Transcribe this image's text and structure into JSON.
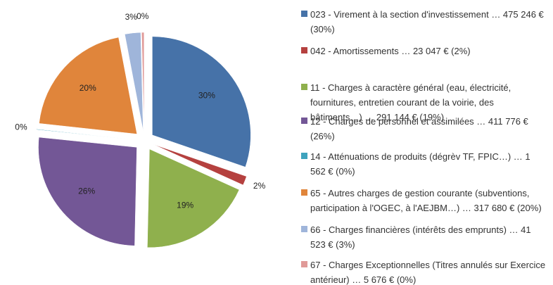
{
  "chart_data": {
    "type": "pie",
    "categories": [
      "023 - Virement à la section d'investissement … 475 246 € (30%)",
      "042 - Amortissements … 23 047 € (2%)",
      "11 - Charges à caractère général (eau, électricité, fournitures, entretien courant de la voirie, des bâtiments…) … 291 144 € (19%)",
      "12 - Charges de personnel et assimilées … 411 776 € (26%)",
      "14 - Atténuations de produits (dégrèv TF, FPIC…) … 1 562 € (0%)",
      "65 - Autres charges de gestion courante (subventions, participation à l'OGEC, à l'AEJBM…) … 317 680 € (20%)",
      "66 - Charges financières (intérêts des emprunts) … 41 523 € (3%)",
      "67 - Charges Exceptionnelles (Titres annulés sur Exercice antérieur) … 5 676 € (0%)"
    ],
    "values": [
      30.3,
      1.5,
      18.6,
      26.3,
      0.1,
      20.3,
      2.6,
      0.4
    ],
    "value_labels": [
      "30%",
      "2%",
      "19%",
      "26%",
      "0%",
      "20%",
      "3%",
      "0%"
    ],
    "colors": [
      "#4672a8",
      "#b5413f",
      "#8fb04d",
      "#735796",
      "#3fa3bd",
      "#e0853b",
      "#9fb5da",
      "#e09a98"
    ],
    "legend": "right"
  }
}
